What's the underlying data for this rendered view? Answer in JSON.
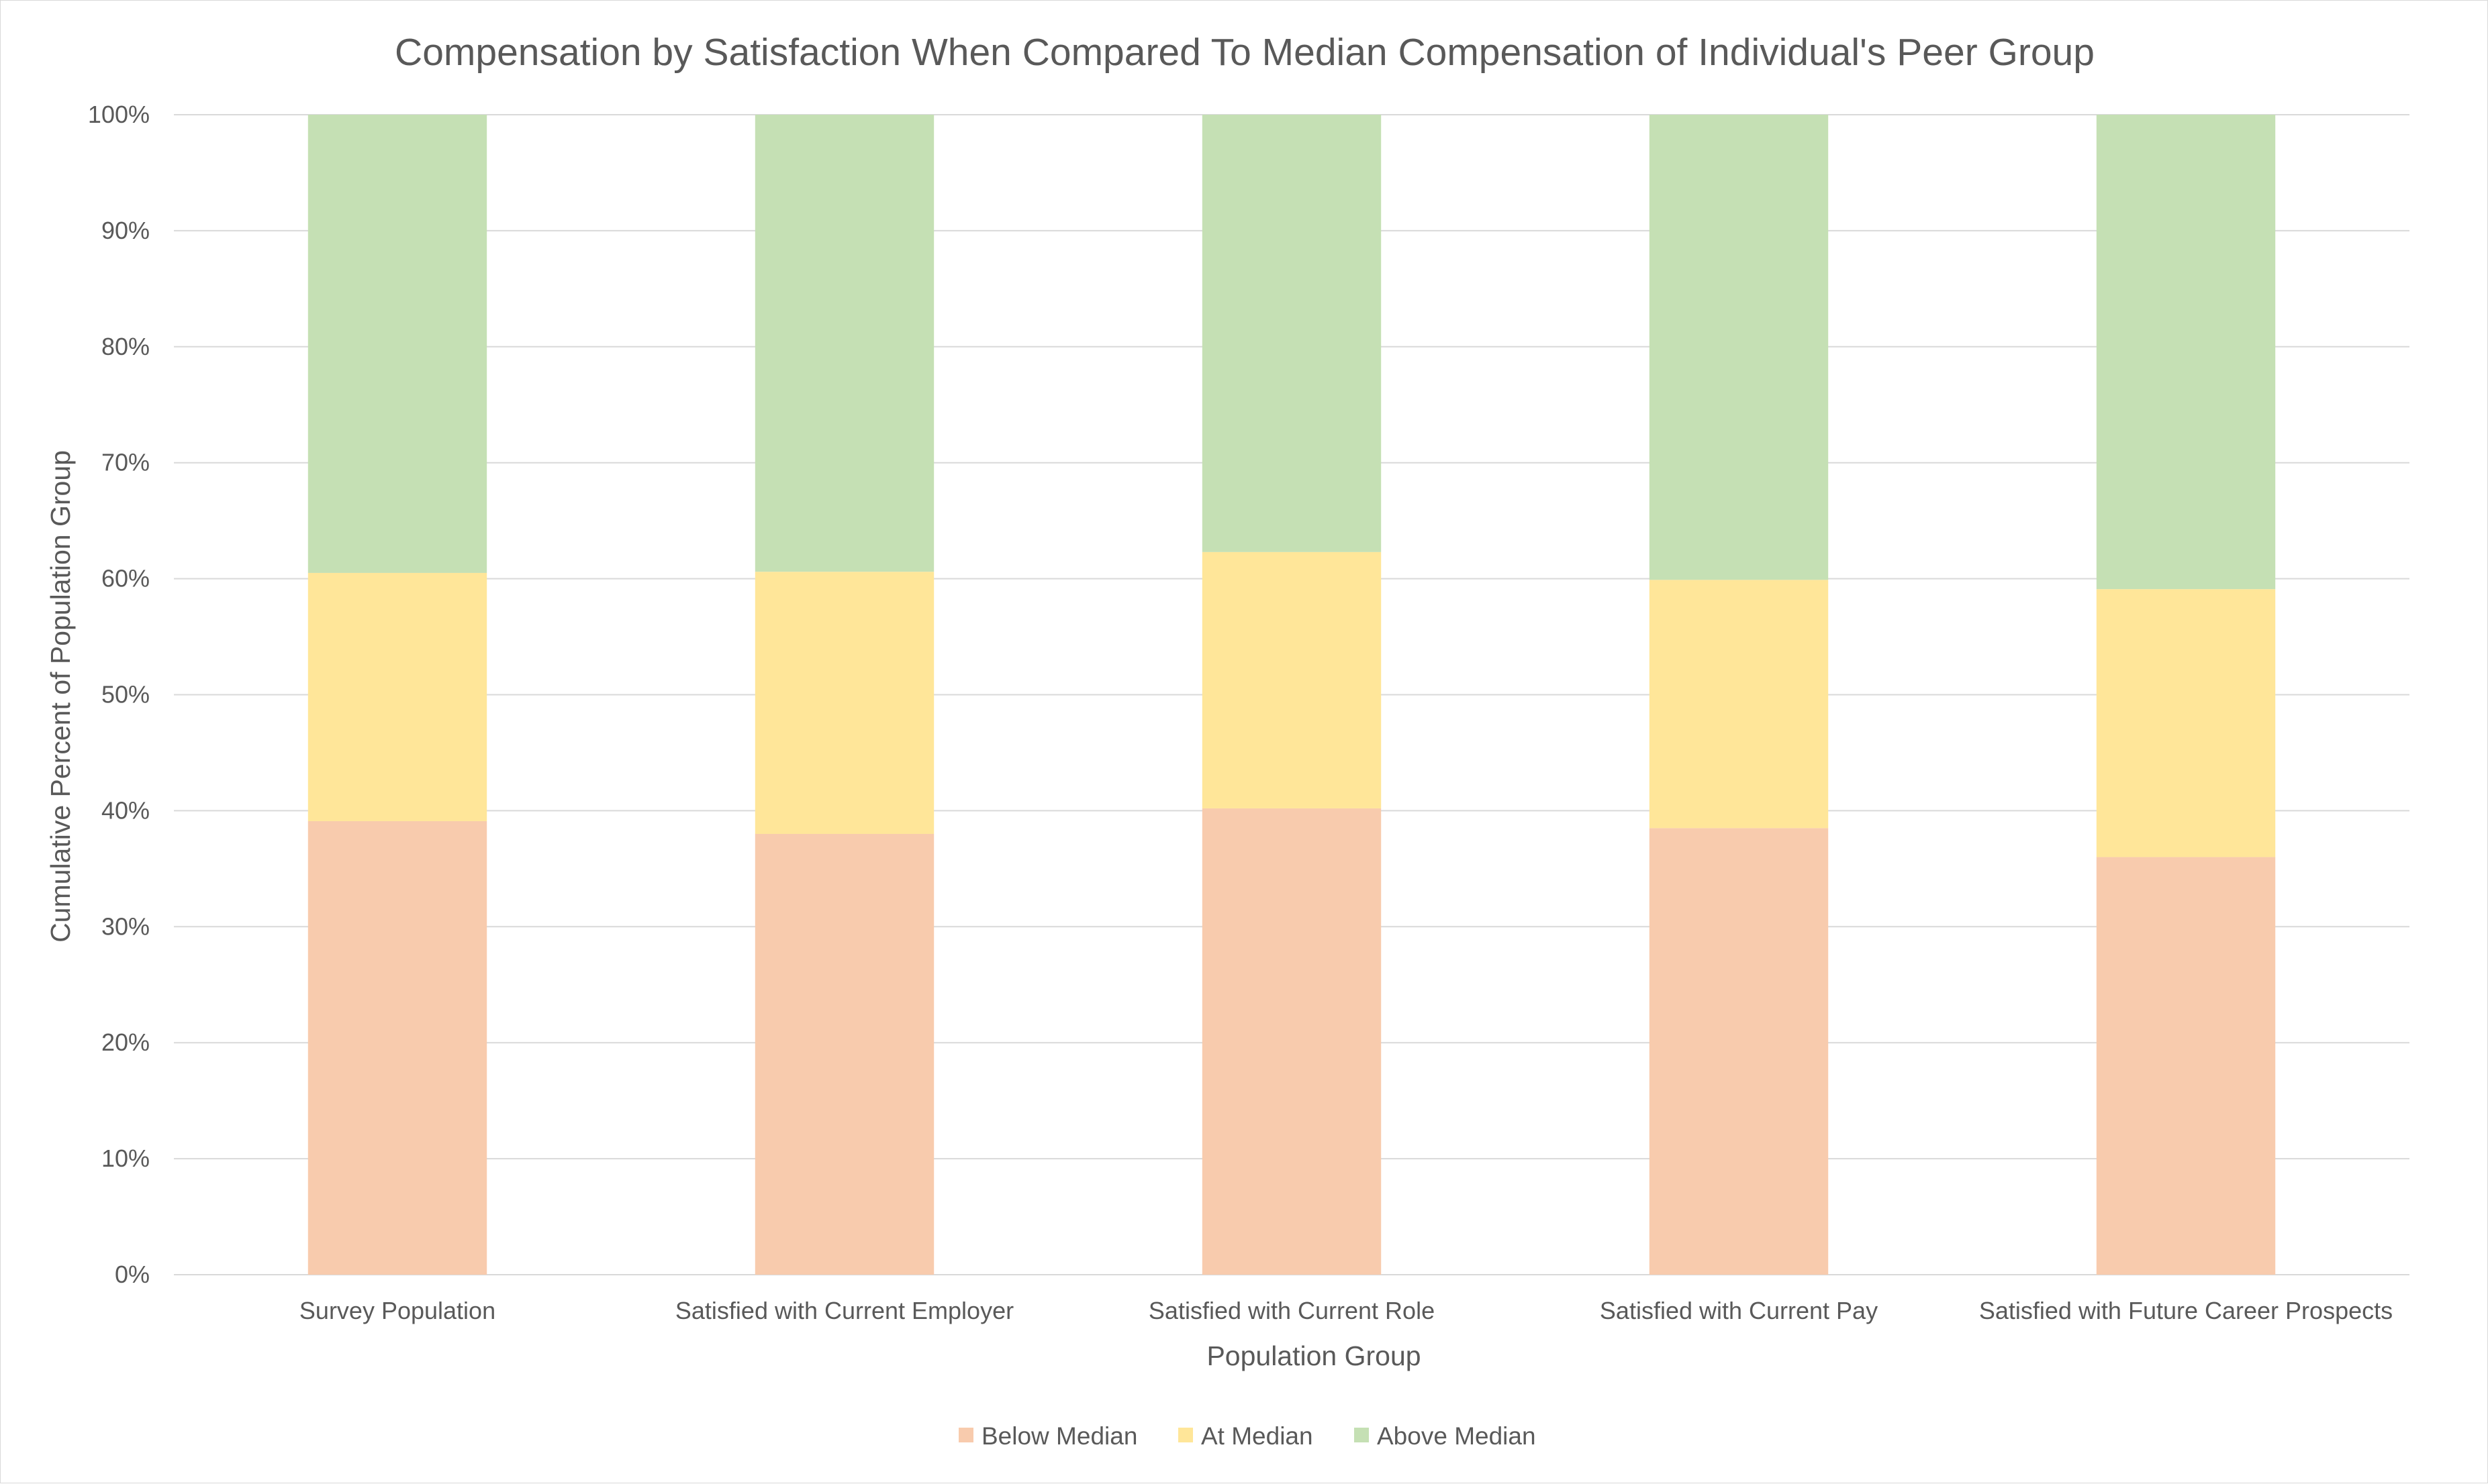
{
  "chart_data": {
    "type": "bar",
    "stacked": true,
    "title": "Compensation by Satisfaction When Compared To Median Compensation of Individual's Peer Group",
    "xlabel": "Population Group",
    "ylabel": "Cumulative Percent of Population Group",
    "ylim": [
      0,
      100
    ],
    "yticks": [
      "0%",
      "10%",
      "20%",
      "30%",
      "40%",
      "50%",
      "60%",
      "70%",
      "80%",
      "90%",
      "100%"
    ],
    "ytick_values": [
      0,
      10,
      20,
      30,
      40,
      50,
      60,
      70,
      80,
      90,
      100
    ],
    "categories": [
      "Survey Population",
      "Satisfied with Current Employer",
      "Satisfied with Current Role",
      "Satisfied with Current Pay",
      "Satisfied with Future Career Prospects"
    ],
    "series": [
      {
        "name": "Below Median",
        "color": "#f8cbad",
        "values": [
          39.1,
          38.0,
          40.2,
          38.5,
          36.0
        ]
      },
      {
        "name": "At Median",
        "color": "#ffe699",
        "values": [
          21.4,
          22.6,
          22.1,
          21.4,
          23.1
        ]
      },
      {
        "name": "Above Median",
        "color": "#c5e0b4",
        "values": [
          39.5,
          39.4,
          37.7,
          40.1,
          40.9
        ]
      }
    ],
    "grid": true,
    "gridline_color": "#d9d9d9",
    "legend_position": "bottom"
  }
}
